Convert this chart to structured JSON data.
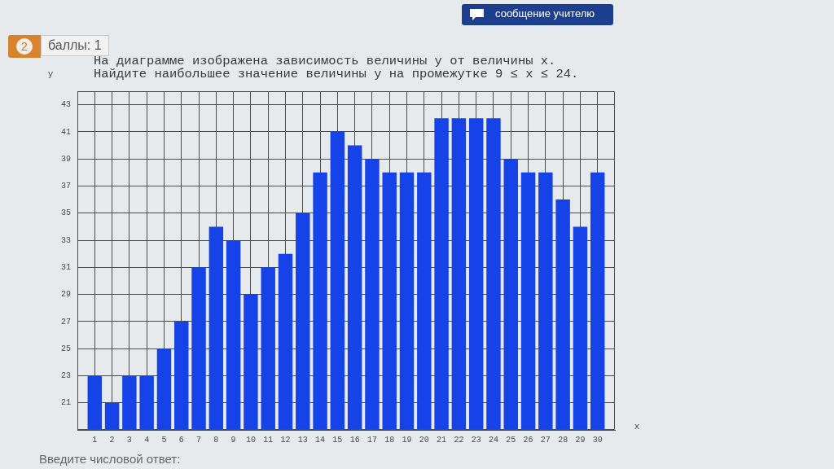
{
  "chart_data": {
    "type": "bar",
    "title": "На диаграмме изображена зависимость величины y от величины x.",
    "subtitle": "Найдите наибольшее значение величины y на промежутке 9 ≤ x ≤ 24.",
    "xlabel": "x",
    "ylabel": "y",
    "x": [
      1,
      2,
      3,
      4,
      5,
      6,
      7,
      8,
      9,
      10,
      11,
      12,
      13,
      14,
      15,
      16,
      17,
      18,
      19,
      20,
      21,
      22,
      23,
      24,
      25,
      26,
      27,
      28,
      29,
      30
    ],
    "values": [
      23,
      21,
      23,
      23,
      25,
      27,
      31,
      34,
      33,
      29,
      31,
      32,
      35,
      38,
      41,
      40,
      39,
      38,
      38,
      38,
      42,
      42,
      42,
      42,
      39,
      38,
      38,
      36,
      34,
      38
    ],
    "color": "#1543e8",
    "xlim": [
      0,
      31
    ],
    "ylim": [
      19,
      44
    ],
    "xticks": [
      1,
      2,
      3,
      4,
      5,
      6,
      7,
      8,
      9,
      10,
      11,
      12,
      13,
      14,
      15,
      16,
      17,
      18,
      19,
      20,
      21,
      22,
      23,
      24,
      25,
      26,
      27,
      28,
      29,
      30
    ],
    "yticks": [
      21,
      23,
      25,
      27,
      29,
      31,
      33,
      35,
      37,
      39,
      41,
      43
    ],
    "grid": true,
    "annotations": [
      "сообщение учителю",
      "2",
      "баллы: 1",
      "Введите числовой ответ:"
    ]
  }
}
